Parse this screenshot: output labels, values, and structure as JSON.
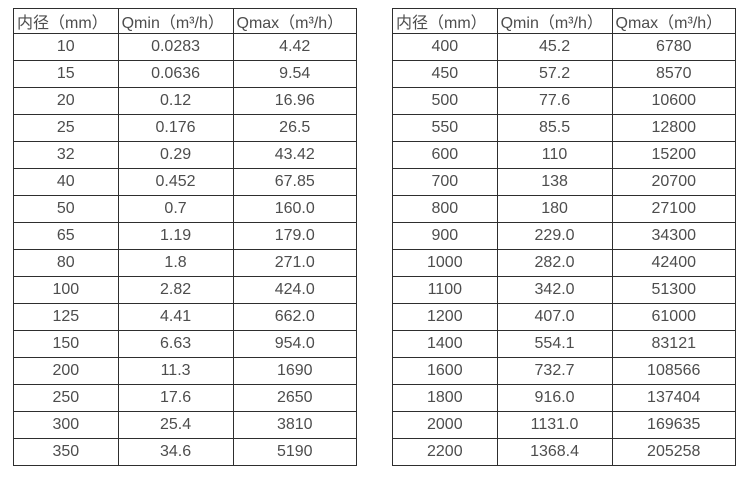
{
  "colors": {
    "background": "#ffffff",
    "border": "#2e2e2e",
    "text": "#4d4d4d"
  },
  "chart_data": [
    {
      "type": "table",
      "columns": [
        "内径（mm）",
        "Qmin（m³/h）",
        "Qmax（m³/h）"
      ],
      "rows": [
        [
          "10",
          "0.0283",
          "4.42"
        ],
        [
          "15",
          "0.0636",
          "9.54"
        ],
        [
          "20",
          "0.12",
          "16.96"
        ],
        [
          "25",
          "0.176",
          "26.5"
        ],
        [
          "32",
          "0.29",
          "43.42"
        ],
        [
          "40",
          "0.452",
          "67.85"
        ],
        [
          "50",
          "0.7",
          "160.0"
        ],
        [
          "65",
          "1.19",
          "179.0"
        ],
        [
          "80",
          "1.8",
          "271.0"
        ],
        [
          "100",
          "2.82",
          "424.0"
        ],
        [
          "125",
          "4.41",
          "662.0"
        ],
        [
          "150",
          "6.63",
          "954.0"
        ],
        [
          "200",
          "11.3",
          "1690"
        ],
        [
          "250",
          "17.6",
          "2650"
        ],
        [
          "300",
          "25.4",
          "3810"
        ],
        [
          "350",
          "34.6",
          "5190"
        ]
      ]
    },
    {
      "type": "table",
      "columns": [
        "内径（mm）",
        "Qmin（m³/h）",
        "Qmax（m³/h）"
      ],
      "rows": [
        [
          "400",
          "45.2",
          "6780"
        ],
        [
          "450",
          "57.2",
          "8570"
        ],
        [
          "500",
          "77.6",
          "10600"
        ],
        [
          "550",
          "85.5",
          "12800"
        ],
        [
          "600",
          "110",
          "15200"
        ],
        [
          "700",
          "138",
          "20700"
        ],
        [
          "800",
          "180",
          "27100"
        ],
        [
          "900",
          "229.0",
          "34300"
        ],
        [
          "1000",
          "282.0",
          "42400"
        ],
        [
          "1100",
          "342.0",
          "51300"
        ],
        [
          "1200",
          "407.0",
          "61000"
        ],
        [
          "1400",
          "554.1",
          "83121"
        ],
        [
          "1600",
          "732.7",
          "108566"
        ],
        [
          "1800",
          "916.0",
          "137404"
        ],
        [
          "2000",
          "1131.0",
          "169635"
        ],
        [
          "2200",
          "1368.4",
          "205258"
        ]
      ]
    }
  ]
}
